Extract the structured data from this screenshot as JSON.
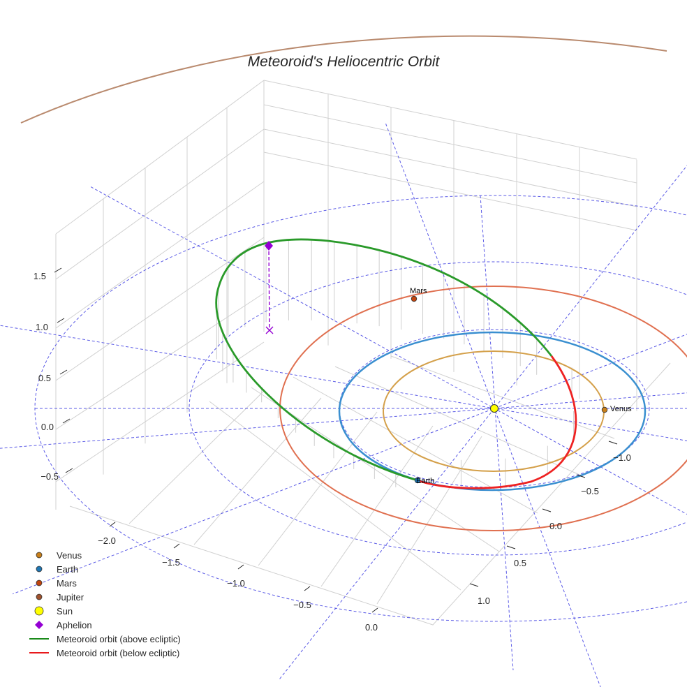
{
  "chart_data": {
    "type": "line",
    "projection": "3d",
    "title": "Meteoroid's Heliocentric Orbit",
    "axes": {
      "x": {
        "ticks": [
          "−2.0",
          "−1.5",
          "−1.0",
          "−0.5",
          "0.0"
        ]
      },
      "y": {
        "ticks": [
          "−1.0",
          "−0.5",
          "0.0",
          "0.5",
          "1.0"
        ]
      },
      "z": {
        "ticks": [
          "1.5",
          "1.0",
          "0.5",
          "0.0",
          "−0.5"
        ]
      }
    },
    "grid": true,
    "legend_position": "bottom-left",
    "legend": [
      {
        "label": "Venus",
        "marker": "circle",
        "color": "#c87f1a"
      },
      {
        "label": "Earth",
        "marker": "circle",
        "color": "#1f77b4"
      },
      {
        "label": "Mars",
        "marker": "circle",
        "color": "#c1440e"
      },
      {
        "label": "Jupiter",
        "marker": "circle",
        "color": "#a0522d"
      },
      {
        "label": "Sun",
        "marker": "circle",
        "color": "#ffff00"
      },
      {
        "label": "Aphelion",
        "marker": "diamond",
        "color": "#9400d3"
      },
      {
        "label": "Meteoroid orbit (above ecliptic)",
        "marker": "line",
        "color": "#1a8a1a"
      },
      {
        "label": "Meteoroid orbit (below ecliptic)",
        "marker": "line",
        "color": "#e8191c"
      }
    ],
    "planet_labels": {
      "venus": "Venus",
      "earth": "Earth",
      "mars": "Mars"
    },
    "orbit_radii_au": {
      "venus": 0.72,
      "earth": 1.0,
      "mars": 1.52,
      "jupiter": 5.2
    },
    "colors": {
      "venus_orbit": "#d4a04a",
      "earth_orbit": "#3a8fd0",
      "mars_orbit": "#e07050",
      "jupiter_orbit": "#b98a6e",
      "ecliptic_grid": "#5a5ae6",
      "above": "#2a9a2a",
      "below": "#ee2222",
      "aphelion": "#9400d3"
    }
  }
}
